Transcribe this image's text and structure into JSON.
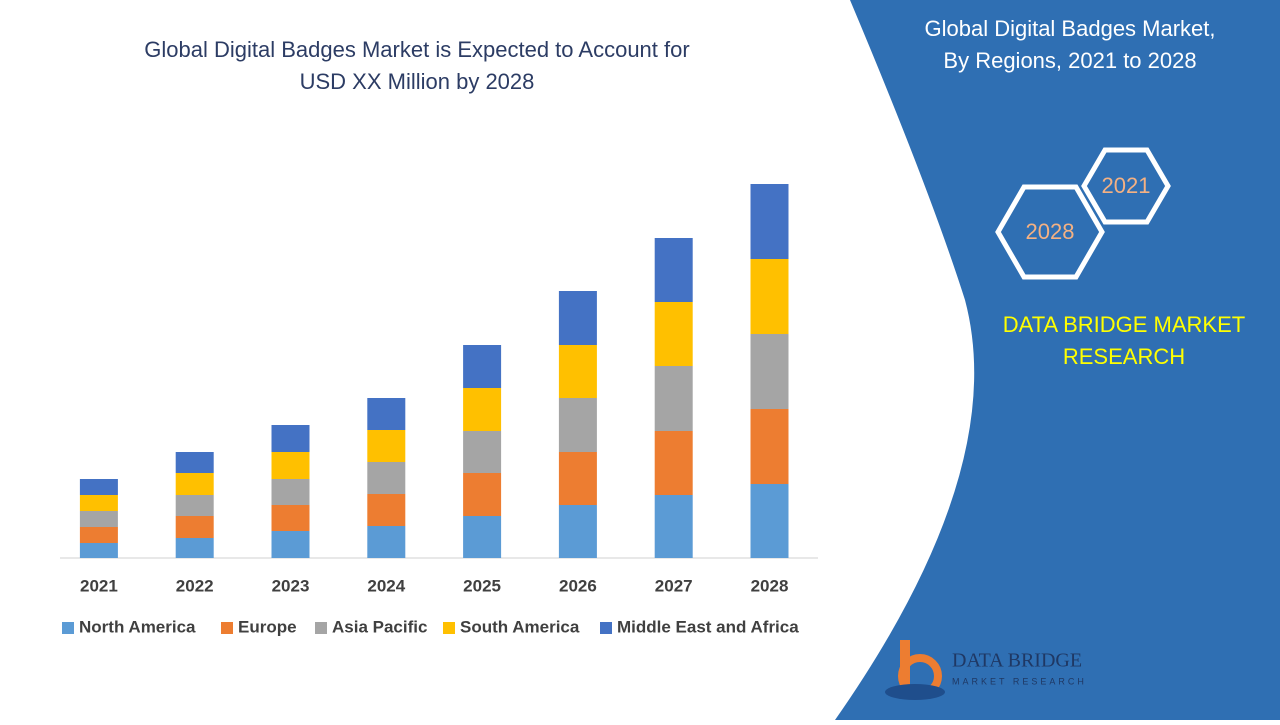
{
  "chart_data": {
    "type": "stacked_bar",
    "title": [
      "Global Digital Badges Market is Expected to Account for",
      "USD XX Million by 2028"
    ],
    "categories": [
      "2021",
      "2022",
      "2023",
      "2024",
      "2025",
      "2026",
      "2027",
      "2028"
    ],
    "series": [
      {
        "name": "North America",
        "color": "#5b9bd5",
        "values": [
          15,
          20,
          27,
          32,
          42,
          53,
          63,
          74
        ]
      },
      {
        "name": "Europe",
        "color": "#ed7d31",
        "values": [
          16,
          22,
          26,
          32,
          43,
          53,
          64,
          75
        ]
      },
      {
        "name": "Asia Pacific",
        "color": "#a5a5a5",
        "values": [
          16,
          21,
          26,
          32,
          42,
          54,
          65,
          75
        ]
      },
      {
        "name": "South America",
        "color": "#ffc000",
        "values": [
          16,
          22,
          27,
          32,
          43,
          53,
          64,
          75
        ]
      },
      {
        "name": "Middle East and Africa",
        "color": "#4472c4",
        "values": [
          16,
          21,
          27,
          32,
          43,
          54,
          64,
          75
        ]
      }
    ]
  },
  "panel": {
    "title": [
      "Global Digital Badges Market,",
      "By Regions,  2021 to 2028"
    ],
    "hexagons": [
      "2021",
      "2028"
    ],
    "brand": [
      "DATA BRIDGE MARKET",
      "RESEARCH"
    ],
    "logo": [
      "DATA BRIDGE",
      "MARKET RESEARCH"
    ]
  }
}
